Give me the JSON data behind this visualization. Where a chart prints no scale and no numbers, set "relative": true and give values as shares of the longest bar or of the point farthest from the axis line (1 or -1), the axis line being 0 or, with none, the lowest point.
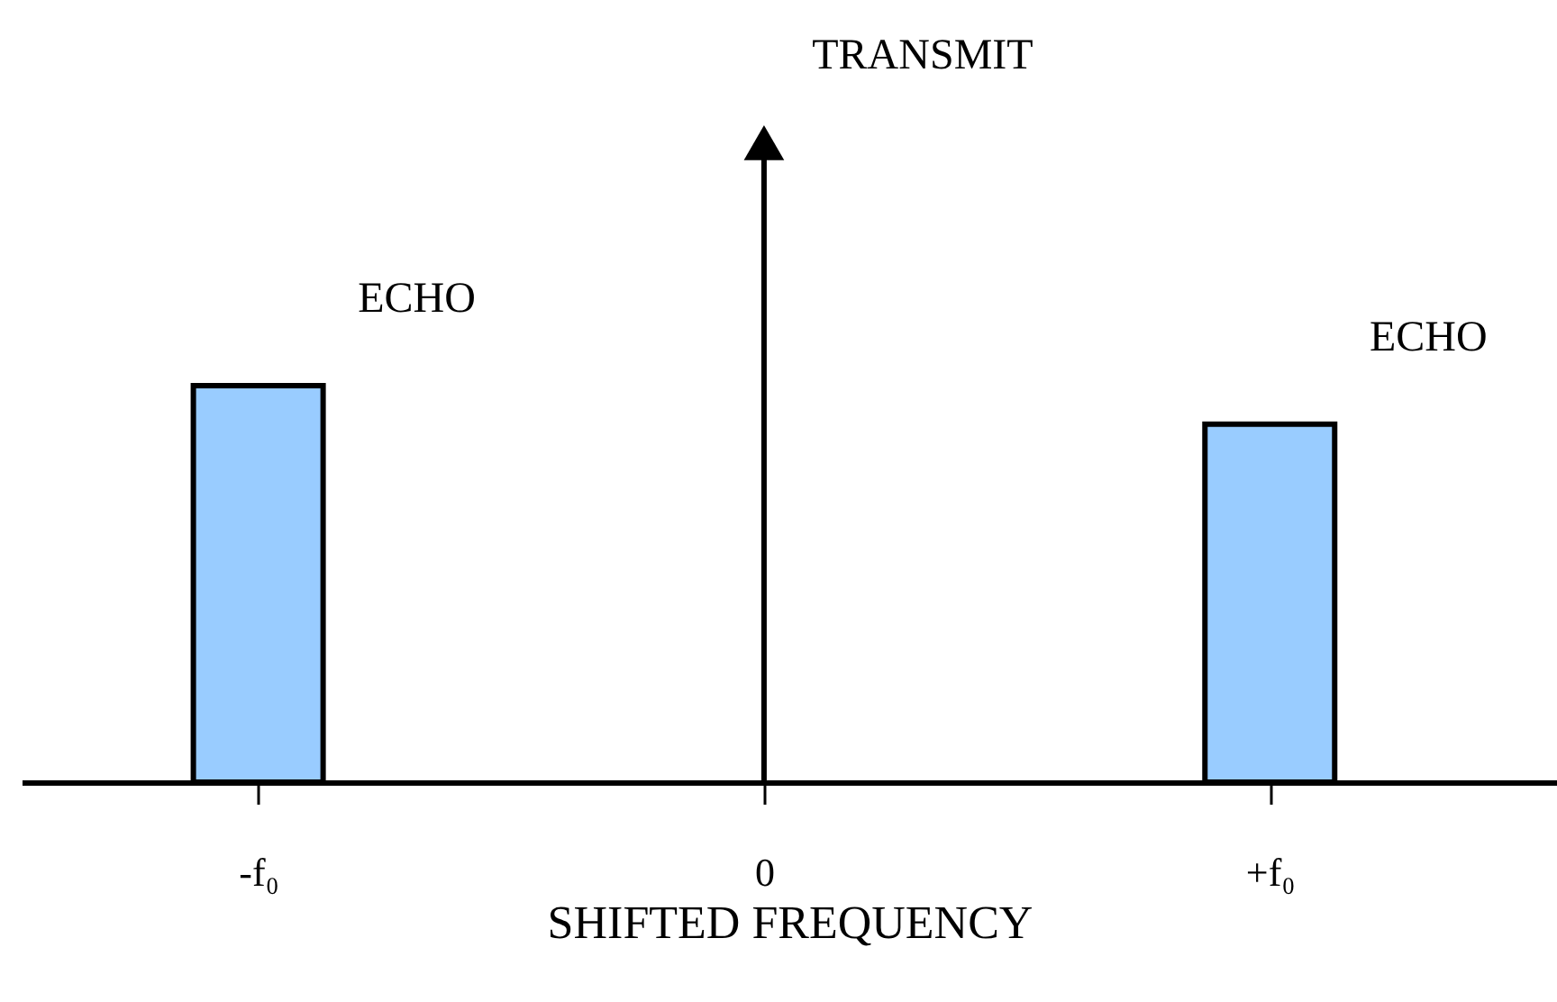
{
  "chart_data": {
    "type": "bar",
    "relative": true,
    "categories": [
      "-f₀",
      "0",
      "+f₀"
    ],
    "xlabel": "SHIFTED FREQUENCY",
    "series": [
      {
        "color": "#99ccff",
        "values": [
          0.62,
          null,
          0.56
        ]
      },
      {
        "type": "lollipop",
        "color": "#000000",
        "marker": "triangle",
        "values": [
          null,
          1,
          null
        ]
      }
    ],
    "annotations": [
      "ECHO",
      "TRANSMIT",
      "ECHO"
    ]
  }
}
